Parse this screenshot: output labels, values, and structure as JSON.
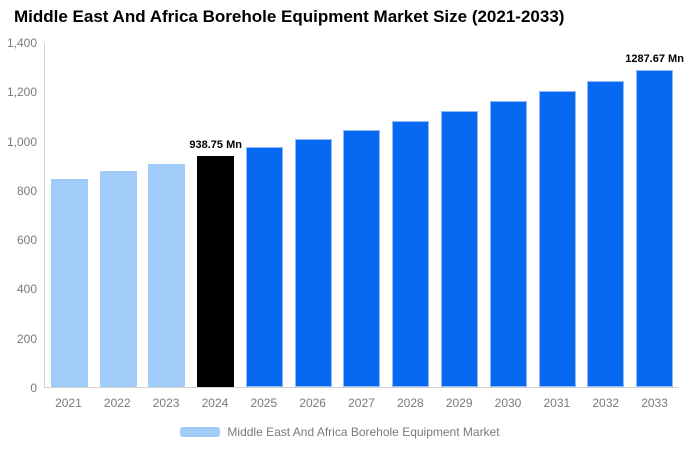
{
  "chart_data": {
    "type": "bar",
    "title": "Middle East And Africa Borehole Equipment Market Size (2021-2033)",
    "xlabel": "",
    "ylabel": "",
    "unit": "Mn",
    "categories": [
      "2021",
      "2022",
      "2023",
      "2024",
      "2025",
      "2026",
      "2027",
      "2028",
      "2029",
      "2030",
      "2031",
      "2032",
      "2033"
    ],
    "values": [
      845.0,
      875.2,
      906.4,
      938.75,
      972.3,
      1007.0,
      1043.0,
      1080.3,
      1118.9,
      1158.9,
      1200.3,
      1243.2,
      1287.67
    ],
    "bar_colors": [
      "#A1CBF8",
      "#A1CBF8",
      "#A1CBF8",
      "#000000",
      "#0768F2",
      "#0768F2",
      "#0768F2",
      "#0768F2",
      "#0768F2",
      "#0768F2",
      "#0768F2",
      "#0768F2",
      "#0768F2"
    ],
    "bar_border_colors": [
      null,
      null,
      null,
      null,
      "#8FBAF3",
      "#8FBAF3",
      "#8FBAF3",
      "#8FBAF3",
      "#8FBAF3",
      "#8FBAF3",
      "#8FBAF3",
      "#8FBAF3",
      "#8FBAF3"
    ],
    "annotations": [
      {
        "index": 3,
        "category": "2024",
        "text": "938.75 Mn"
      },
      {
        "index": 12,
        "category": "2033",
        "text": "1287.67 Mn"
      }
    ],
    "ylim": [
      0,
      1400
    ],
    "yticks": [
      {
        "value": 0,
        "label": "0"
      },
      {
        "value": 200,
        "label": "200"
      },
      {
        "value": 400,
        "label": "400"
      },
      {
        "value": 600,
        "label": "600"
      },
      {
        "value": 800,
        "label": "800"
      },
      {
        "value": 1000,
        "label": "1,000"
      },
      {
        "value": 1200,
        "label": "1,200"
      },
      {
        "value": 1400,
        "label": "1,400"
      }
    ],
    "grid": false,
    "legend_position": "bottom",
    "legend": [
      {
        "label": "Middle East And Africa Borehole Equipment Market",
        "swatch_color": "#A1CBF8"
      }
    ]
  },
  "colors": {
    "title_text": "#000000",
    "annotation_text": "#000000",
    "tick_text": "#7A7A7A",
    "axis_line": "#D3D3D3",
    "background": "#FFFFFF"
  }
}
